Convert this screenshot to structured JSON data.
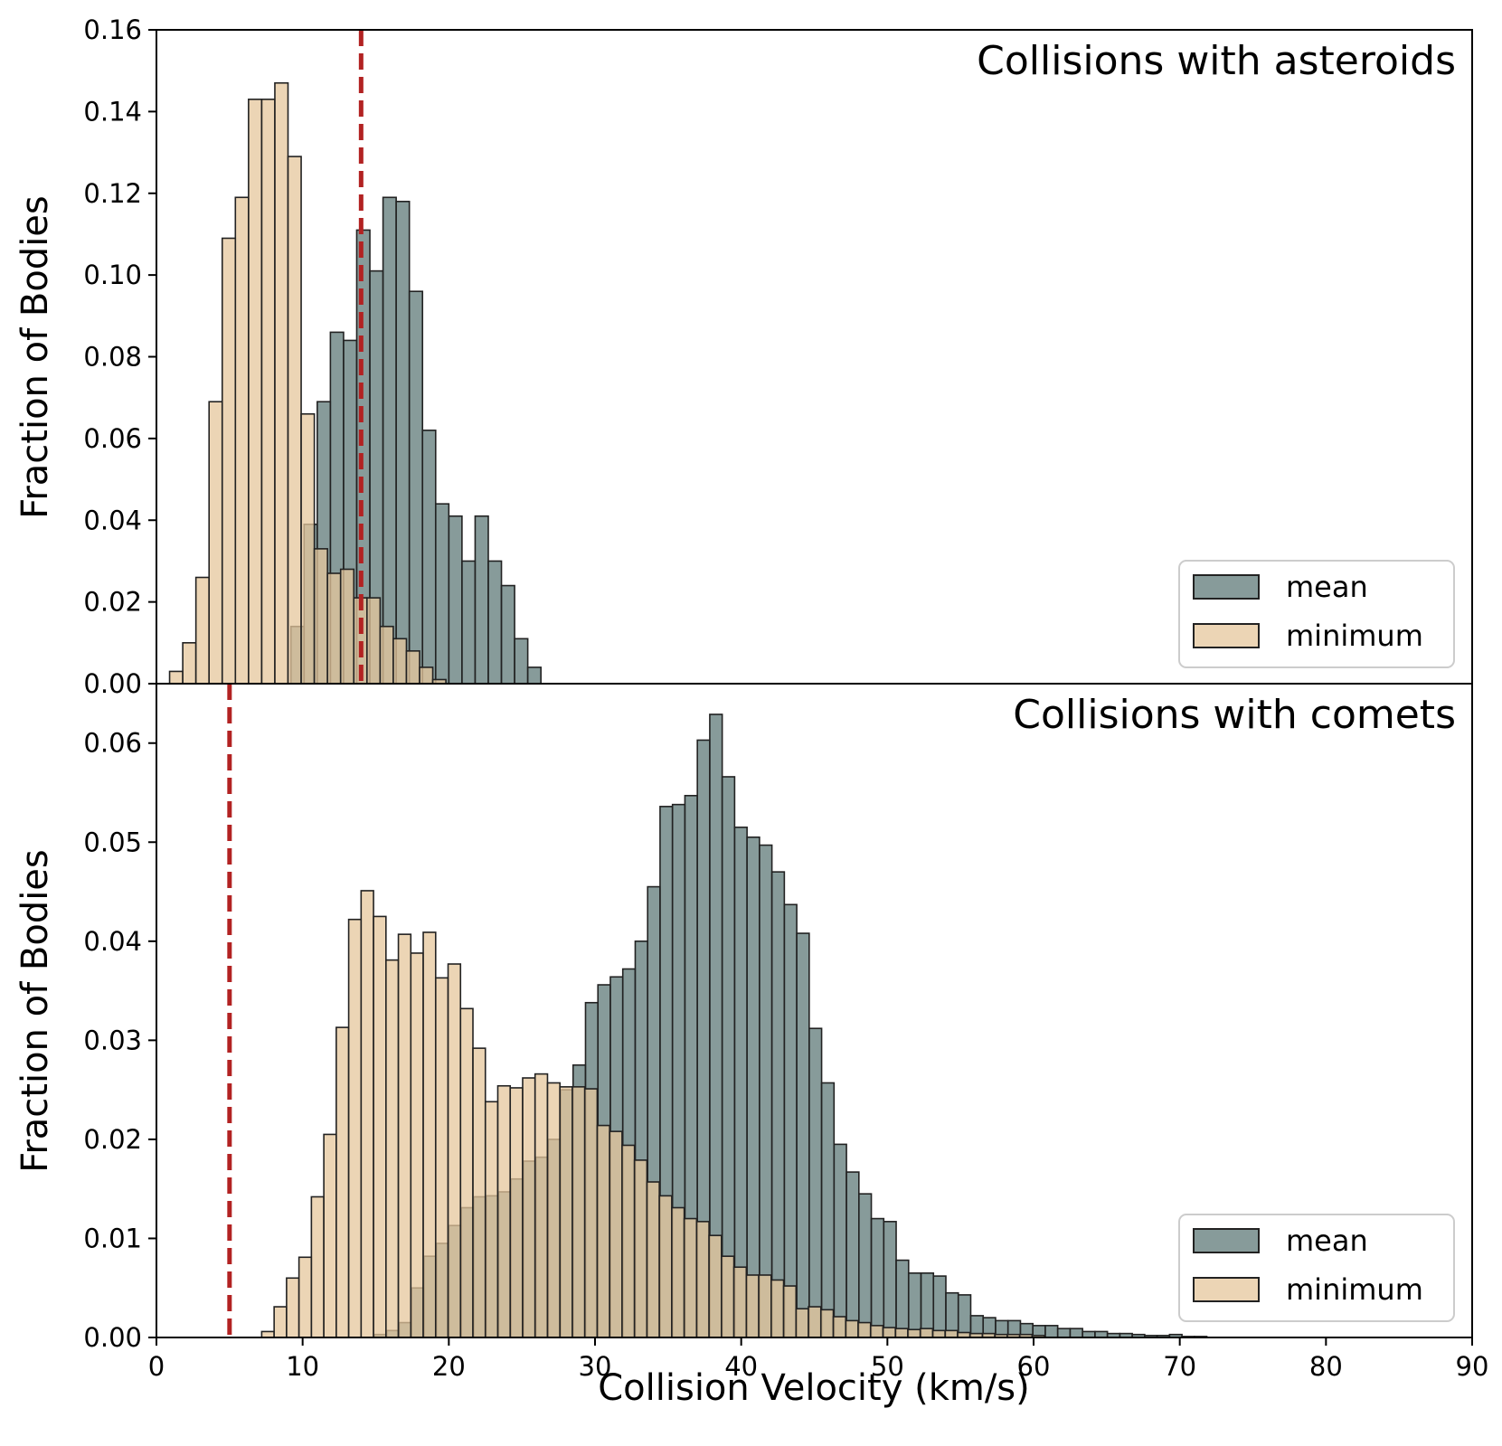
{
  "colors": {
    "mean": "#5f7a78",
    "minimum": "#e6c79c",
    "edge": "#222222",
    "threshold": "#b22222"
  },
  "chart_data": [
    {
      "type": "bar",
      "subtype": "histogram",
      "title": "Collisions with asteroids",
      "xlabel": "Collision Velocity (km/s)",
      "ylabel": "Fraction of Bodies",
      "xlim": [
        0,
        90
      ],
      "ylim": [
        0,
        0.16
      ],
      "xticks": [
        "0",
        "10",
        "20",
        "30",
        "40",
        "50",
        "60",
        "70",
        "80",
        "90"
      ],
      "yticks": [
        "0.00",
        "0.02",
        "0.04",
        "0.06",
        "0.08",
        "0.10",
        "0.12",
        "0.14",
        "0.16"
      ],
      "threshold_x": 14.0,
      "legend": {
        "placement": "lower-right",
        "entries": [
          "mean",
          "minimum"
        ]
      },
      "series": [
        {
          "name": "mean",
          "bin_start": 9.2,
          "bin_width": 0.9,
          "values": [
            0.014,
            0.039,
            0.069,
            0.086,
            0.084,
            0.111,
            0.101,
            0.119,
            0.118,
            0.096,
            0.062,
            0.044,
            0.041,
            0.03,
            0.041,
            0.03,
            0.024,
            0.011,
            0.004
          ]
        },
        {
          "name": "minimum",
          "bin_start": 0.9,
          "bin_width": 0.9,
          "values": [
            0.003,
            0.01,
            0.026,
            0.069,
            0.109,
            0.119,
            0.143,
            0.143,
            0.147,
            0.129,
            0.066,
            0.033,
            0.027,
            0.028,
            0.021,
            0.021,
            0.014,
            0.011,
            0.008,
            0.004,
            0.001
          ]
        }
      ]
    },
    {
      "type": "bar",
      "subtype": "histogram",
      "title": "Collisions with comets",
      "xlabel": "Collision Velocity (km/s)",
      "ylabel": "Fraction of Bodies",
      "xlim": [
        0,
        90
      ],
      "ylim": [
        0,
        0.066
      ],
      "xticks": [
        "0",
        "10",
        "20",
        "30",
        "40",
        "50",
        "60",
        "70",
        "80",
        "90"
      ],
      "yticks": [
        "0.00",
        "0.01",
        "0.02",
        "0.03",
        "0.04",
        "0.05",
        "0.06"
      ],
      "threshold_x": 5.0,
      "legend": {
        "placement": "lower-right",
        "entries": [
          "mean",
          "minimum"
        ]
      },
      "series": [
        {
          "name": "mean",
          "bin_start": 14.9,
          "bin_width": 0.85,
          "values": [
            0.0003,
            0.0007,
            0.0015,
            0.005,
            0.0082,
            0.0095,
            0.0113,
            0.0131,
            0.0142,
            0.0143,
            0.0147,
            0.016,
            0.0178,
            0.0182,
            0.02,
            0.025,
            0.0275,
            0.0338,
            0.0356,
            0.0364,
            0.0372,
            0.04,
            0.0455,
            0.0536,
            0.0538,
            0.0547,
            0.0603,
            0.0629,
            0.0566,
            0.0515,
            0.0505,
            0.0497,
            0.047,
            0.0437,
            0.0408,
            0.0312,
            0.0257,
            0.0195,
            0.0167,
            0.0145,
            0.012,
            0.0117,
            0.0078,
            0.0065,
            0.0065,
            0.0062,
            0.0045,
            0.0043,
            0.0022,
            0.002,
            0.0017,
            0.0017,
            0.0014,
            0.0012,
            0.0012,
            0.0009,
            0.0009,
            0.0006,
            0.0006,
            0.0004,
            0.0004,
            0.0003,
            0.0002,
            0.0002,
            0.0003,
            0.0001,
            0.0001
          ]
        },
        {
          "name": "minimum",
          "bin_start": 7.2,
          "bin_width": 0.85,
          "values": [
            0.0006,
            0.0031,
            0.006,
            0.0081,
            0.0142,
            0.0205,
            0.0313,
            0.0422,
            0.0451,
            0.0425,
            0.0381,
            0.0407,
            0.0388,
            0.0409,
            0.0363,
            0.0377,
            0.0332,
            0.0292,
            0.0238,
            0.0254,
            0.0252,
            0.0262,
            0.0266,
            0.0257,
            0.0253,
            0.0253,
            0.0251,
            0.0214,
            0.0208,
            0.0194,
            0.0179,
            0.0157,
            0.0143,
            0.0131,
            0.012,
            0.0117,
            0.0103,
            0.0082,
            0.0071,
            0.0063,
            0.0063,
            0.0058,
            0.0052,
            0.0029,
            0.0031,
            0.0028,
            0.0021,
            0.0017,
            0.0015,
            0.0012,
            0.001,
            0.0009,
            0.0008,
            0.0009,
            0.0007,
            0.0007,
            0.0005,
            0.0004,
            0.0004,
            0.0003,
            0.0003,
            0.0003,
            0.0002
          ]
        }
      ]
    }
  ]
}
